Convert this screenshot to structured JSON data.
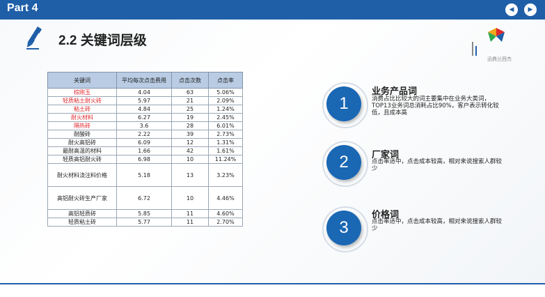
{
  "header": {
    "part_label": "Part 4"
  },
  "title": "2.2 关键词层级",
  "logo": {
    "text": "迅鼎兰西杰"
  },
  "table": {
    "headers": [
      "关键词",
      "平均每次点击费用",
      "点击次数",
      "点击率"
    ],
    "rows": [
      {
        "kw": "棕刚玉",
        "cost": "4.04",
        "clicks": "63",
        "ctr": "5.06%",
        "red": true
      },
      {
        "kw": "轻质粘土耐火砖",
        "cost": "5.97",
        "clicks": "21",
        "ctr": "2.09%",
        "red": true
      },
      {
        "kw": "粘土砖",
        "cost": "4.84",
        "clicks": "25",
        "ctr": "1.24%",
        "red": true
      },
      {
        "kw": "耐火材料",
        "cost": "6.27",
        "clicks": "19",
        "ctr": "2.45%",
        "red": true
      },
      {
        "kw": "隔热砖",
        "cost": "3.6",
        "clicks": "28",
        "ctr": "6.01%",
        "red": true
      },
      {
        "kw": "耐酸砖",
        "cost": "2.22",
        "clicks": "39",
        "ctr": "2.73%",
        "red": false
      },
      {
        "kw": "耐火高铝砖",
        "cost": "6.09",
        "clicks": "12",
        "ctr": "1.31%",
        "red": false
      },
      {
        "kw": "最耐高温的材料",
        "cost": "1.66",
        "clicks": "42",
        "ctr": "1.61%",
        "red": false
      },
      {
        "kw": "轻质高铝耐火砖",
        "cost": "6.98",
        "clicks": "10",
        "ctr": "11.24%",
        "red": false
      },
      {
        "kw": "耐火材料浇注料价格",
        "cost": "5.18",
        "clicks": "13",
        "ctr": "3.23%",
        "red": false,
        "tall": true
      },
      {
        "kw": "高铝耐火砖生产厂家",
        "cost": "6.72",
        "clicks": "10",
        "ctr": "4.46%",
        "red": false,
        "tall": true
      },
      {
        "kw": "高铝轻质砖",
        "cost": "5.85",
        "clicks": "11",
        "ctr": "4.60%",
        "red": false
      },
      {
        "kw": "轻质粘土砖",
        "cost": "5.77",
        "clicks": "11",
        "ctr": "2.70%",
        "red": false
      }
    ]
  },
  "points": [
    {
      "num": "1",
      "title": "业务产品词",
      "desc": "消费占比比较大的词主要集中在业务大类词，TOP13业务词总消耗占比90%，客户表示转化较低，且成本高"
    },
    {
      "num": "2",
      "title": "厂家词",
      "desc": "点击率适中，点击成本较高，相对来说搜索人群较少"
    },
    {
      "num": "3",
      "title": "价格词",
      "desc": "点击率适中，点击成本较高，相对来说搜索人群较少"
    }
  ],
  "colors": {
    "accent": "#1f5fa8",
    "circle": "#1a67b4",
    "red_text": "#e0282e",
    "table_header": "#b9cce4"
  }
}
